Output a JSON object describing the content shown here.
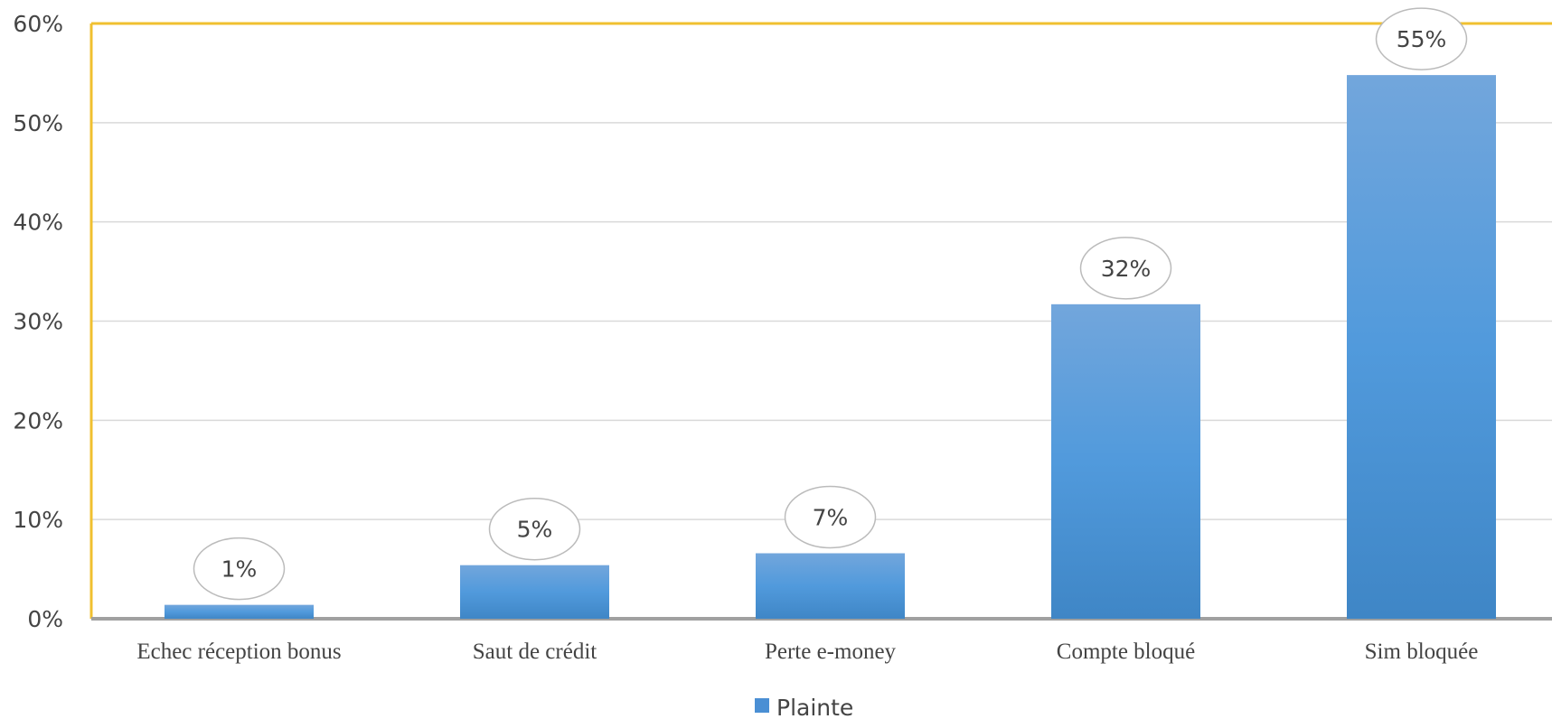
{
  "chart_data": {
    "type": "bar",
    "categories": [
      "Echec réception bonus",
      "Saut de crédit",
      "Perte e-money",
      "Compte bloqué",
      "Sim bloquée"
    ],
    "series": [
      {
        "name": "Plainte",
        "color": "#4a8fd4",
        "values": [
          1.4,
          5.4,
          6.6,
          31.7,
          54.8
        ],
        "value_labels": [
          "1%",
          "5%",
          "7%",
          "32%",
          "55%"
        ]
      }
    ],
    "ylim": [
      0,
      60
    ],
    "yticks": [
      {
        "value": 0,
        "label": "0%"
      },
      {
        "value": 10,
        "label": "10%"
      },
      {
        "value": 20,
        "label": "20%"
      },
      {
        "value": 30,
        "label": "30%"
      },
      {
        "value": 40,
        "label": "40%"
      },
      {
        "value": 50,
        "label": "50%"
      },
      {
        "value": 60,
        "label": "60%"
      }
    ],
    "grid": true,
    "legend": "bottom"
  }
}
